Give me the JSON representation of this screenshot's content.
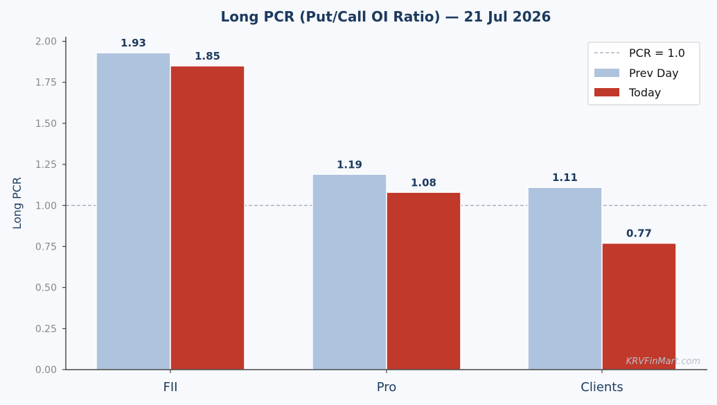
{
  "chart_data": {
    "type": "bar",
    "title": "Long PCR (Put/Call OI Ratio) — 21 Jul 2026",
    "xlabel": "",
    "ylabel": "Long PCR",
    "categories": [
      "FII",
      "Pro",
      "Clients"
    ],
    "series": [
      {
        "name": "Prev Day",
        "values": [
          1.93,
          1.19,
          1.11
        ],
        "color": "#aec3dd"
      },
      {
        "name": "Today",
        "values": [
          1.85,
          1.08,
          0.77
        ],
        "color": "#c0392b"
      }
    ],
    "ylim": [
      0,
      2.0
    ],
    "yticks": [
      "0.00",
      "0.25",
      "0.50",
      "0.75",
      "1.00",
      "1.25",
      "1.50",
      "1.75",
      "2.00"
    ],
    "reference_line": {
      "value": 1.0,
      "label": "PCR = 1.0",
      "color": "#9aa6bb"
    },
    "legend_position": "top-right",
    "grid": false,
    "watermark": "KRVFinMart.com"
  }
}
